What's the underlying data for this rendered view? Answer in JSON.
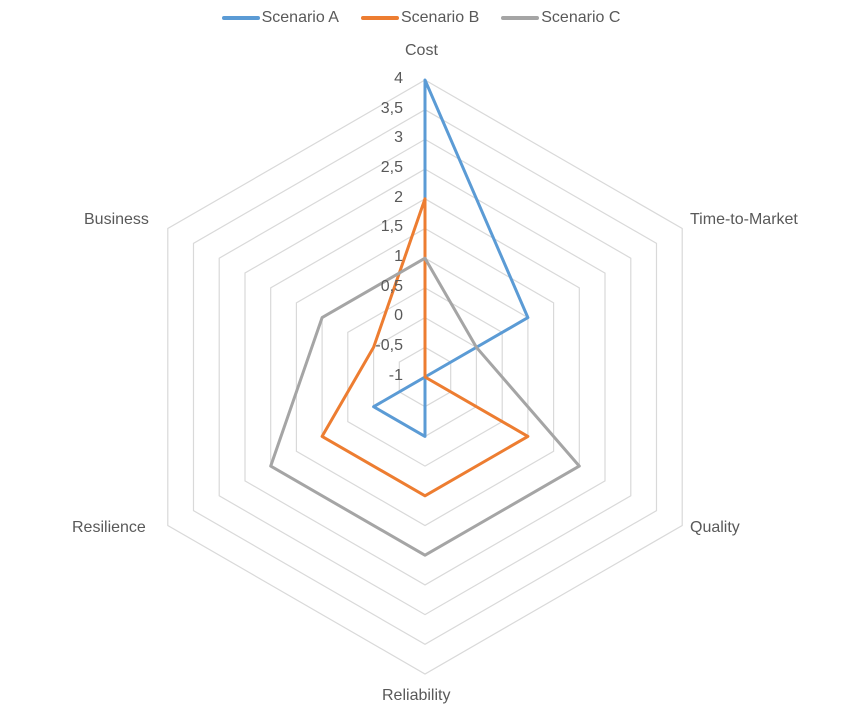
{
  "chart_data": {
    "type": "radar",
    "title": "",
    "categories": [
      "Cost",
      "Time-to-Market",
      "Quality",
      "Reliability",
      "Resilience",
      "Business"
    ],
    "series": [
      {
        "name": "Scenario A",
        "color": "#5B9BD5",
        "values": [
          4,
          1,
          -1,
          0,
          0,
          -1
        ]
      },
      {
        "name": "Scenario B",
        "color": "#ED7D31",
        "values": [
          2,
          -1,
          1,
          1,
          1,
          0
        ]
      },
      {
        "name": "Scenario C",
        "color": "#A5A5A5",
        "values": [
          1,
          0,
          2,
          2,
          2,
          1
        ]
      }
    ],
    "ticks": [
      "4",
      "3,5",
      "3",
      "2,5",
      "2",
      "1,5",
      "1",
      "0,5",
      "0",
      "-0,5",
      "-1"
    ],
    "rlim": [
      -1,
      4
    ],
    "tick_step": 0.5,
    "grid": true,
    "legend_position": "top"
  },
  "legend": [
    {
      "label": "Scenario A",
      "color": "#5B9BD5"
    },
    {
      "label": "Scenario B",
      "color": "#ED7D31"
    },
    {
      "label": "Scenario C",
      "color": "#A5A5A5"
    }
  ],
  "axes": {
    "cost": "Cost",
    "time_to_market": "Time-to-Market",
    "quality": "Quality",
    "reliability": "Reliability",
    "resilience": "Resilience",
    "business": "Business"
  },
  "grid_color": "#D9D9D9"
}
